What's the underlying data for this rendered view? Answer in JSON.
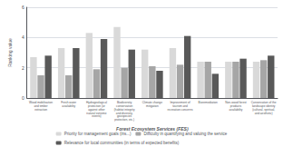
{
  "chart_data": {
    "type": "bar",
    "categories": [
      "Wood mobilisation\nand timber\nextraction",
      "Fresh water\navailability",
      "Hydrogeological\nprotection (or\nagainst other\nnatural extreme\nevents)",
      "Biodiversity\nconservation\n(habitat integrity\nand diversity,\ngeospecies\nprotection, etc.)",
      "Climate change\nmitigation",
      "Improvement of\ntourism and\nrecreation concerns",
      "Bioremediation",
      "Non-wood forest\nproducts\navailability",
      "Conservation of the\nlandscape identity\n(cultural, spiritual,\nand aesthetic)"
    ],
    "series": [
      {
        "name": "Priority for management goals (ins...)",
        "color": "#d9d9d9",
        "values": [
          2.7,
          3.3,
          4.3,
          4.7,
          3.2,
          3.3,
          2.4,
          2.4,
          2.4
        ]
      },
      {
        "name": "Difficulty in quantifying and valuing the service",
        "color": "#a6a6a6",
        "values": [
          1.5,
          1.5,
          1.9,
          2.0,
          2.1,
          2.2,
          2.4,
          2.4,
          2.5
        ]
      },
      {
        "name": "Relevance for local communities (in terms of expected benefits)",
        "color": "#595959",
        "values": [
          2.8,
          3.3,
          3.9,
          3.2,
          1.8,
          4.1,
          1.6,
          2.6,
          2.8
        ]
      }
    ],
    "xlabel": "Forest Ecosystem Services (FES)",
    "ylabel": "Ranking value",
    "ylim": [
      0,
      6
    ],
    "yticks": [
      0,
      2,
      4,
      6
    ],
    "grid": true,
    "legend": "bottom"
  }
}
